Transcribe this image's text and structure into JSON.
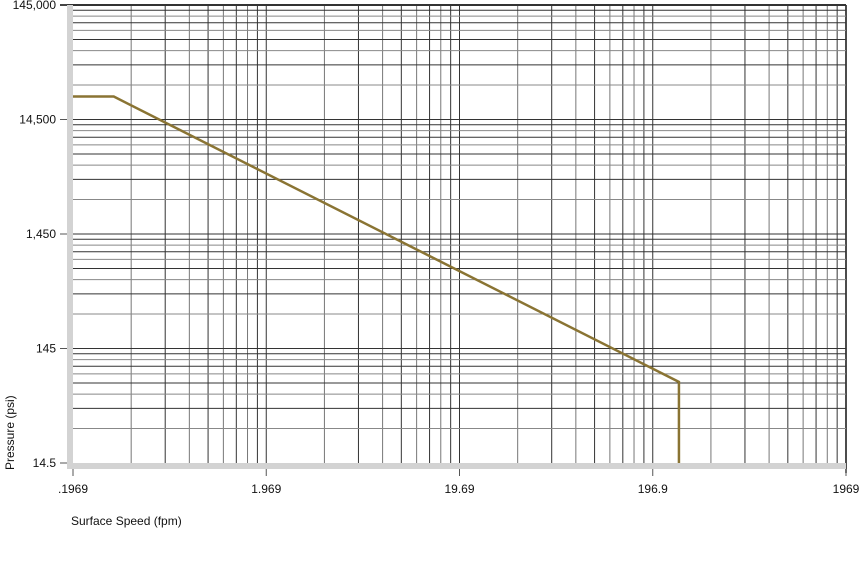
{
  "chart_data": {
    "type": "line",
    "title": "",
    "xlabel": "Surface Speed (fpm)",
    "ylabel": "Pressure (psi)",
    "x_scale": "log",
    "y_scale": "log",
    "xlim": [
      0.1969,
      1969
    ],
    "ylim": [
      14.5,
      145000
    ],
    "x_ticks": [
      ".1969",
      "1.969",
      "19.69",
      "196.9",
      "1969"
    ],
    "x_tick_values": [
      0.1969,
      1.969,
      19.69,
      196.9,
      1969
    ],
    "y_ticks": [
      "14.5",
      "145",
      "1,450",
      "14,500",
      "145,000"
    ],
    "y_tick_values": [
      14.5,
      145,
      1450,
      14500,
      145000
    ],
    "grid": true,
    "series": [
      {
        "color": "#8a7433",
        "x": [
          0.1969,
          0.32,
          269,
          269
        ],
        "y": [
          23000,
          23000,
          74,
          14.5
        ]
      }
    ]
  }
}
